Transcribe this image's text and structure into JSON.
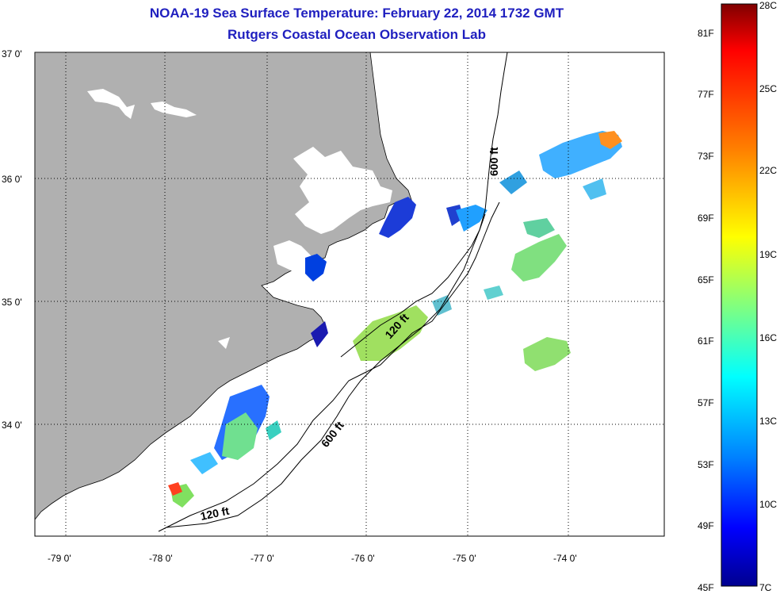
{
  "header": {
    "title": "NOAA-19 Sea Surface Temperature:  February 22, 2014 1732 GMT",
    "subtitle": "Rutgers Coastal Ocean Observation Lab"
  },
  "map": {
    "lon_range": [
      -79.3,
      -73.2
    ],
    "lat_range": [
      33.2,
      37.0
    ],
    "lon_ticks": [
      {
        "value": -79,
        "label": "-79 0'"
      },
      {
        "value": -78,
        "label": "-78 0'"
      },
      {
        "value": -77,
        "label": "-77 0'"
      },
      {
        "value": -76,
        "label": "-76 0'"
      },
      {
        "value": -75,
        "label": "-75 0'"
      },
      {
        "value": -74,
        "label": "-74 0'"
      }
    ],
    "lat_ticks": [
      {
        "value": 37,
        "label": "37 0'"
      },
      {
        "value": 36,
        "label": "36 0'"
      },
      {
        "value": 35,
        "label": "35 0'"
      },
      {
        "value": 34,
        "label": "34 0'"
      }
    ],
    "contour_labels": [
      "600 ft",
      "120 ft",
      "600 ft",
      "120 ft"
    ],
    "colors": {
      "land": "#b0b0b0",
      "ocean": "#ffffff",
      "grid": "#000000"
    }
  },
  "colorbar": {
    "min_c": 7,
    "max_c": 28,
    "celsius_labels": [
      "28C",
      "25C",
      "22C",
      "19C",
      "16C",
      "13C",
      "10C",
      "7C"
    ],
    "fahrenheit_labels": [
      "81F",
      "77F",
      "73F",
      "69F",
      "65F",
      "61F",
      "57F",
      "53F",
      "49F",
      "45F"
    ],
    "stops": [
      "#800000",
      "#ff0000",
      "#ff8000",
      "#ffff00",
      "#80ff80",
      "#00ffff",
      "#0080ff",
      "#0000ff",
      "#00008f"
    ]
  }
}
